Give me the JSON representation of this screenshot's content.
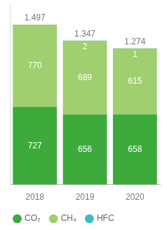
{
  "chart_data": {
    "type": "bar",
    "categories": [
      "2018",
      "2019",
      "2020"
    ],
    "series": [
      {
        "name": "CO₂",
        "color": "#3daa3c",
        "values": [
          727,
          656,
          658
        ]
      },
      {
        "name": "CH₄",
        "color": "#9fcf6f",
        "values": [
          770,
          689,
          615
        ]
      },
      {
        "name": "HFC",
        "color": "#3bbdc6",
        "values": [
          null,
          2,
          1
        ]
      }
    ],
    "totals": [
      {
        "value": 1497,
        "label": "1.497"
      },
      {
        "value": 1347,
        "label": "1.347"
      },
      {
        "value": 1274,
        "label": "1.274"
      }
    ],
    "stacked": true,
    "data_labels": true,
    "legend": "bottom",
    "grid": false,
    "tick_labels": "x",
    "ylim": [
      0,
      1700
    ]
  }
}
